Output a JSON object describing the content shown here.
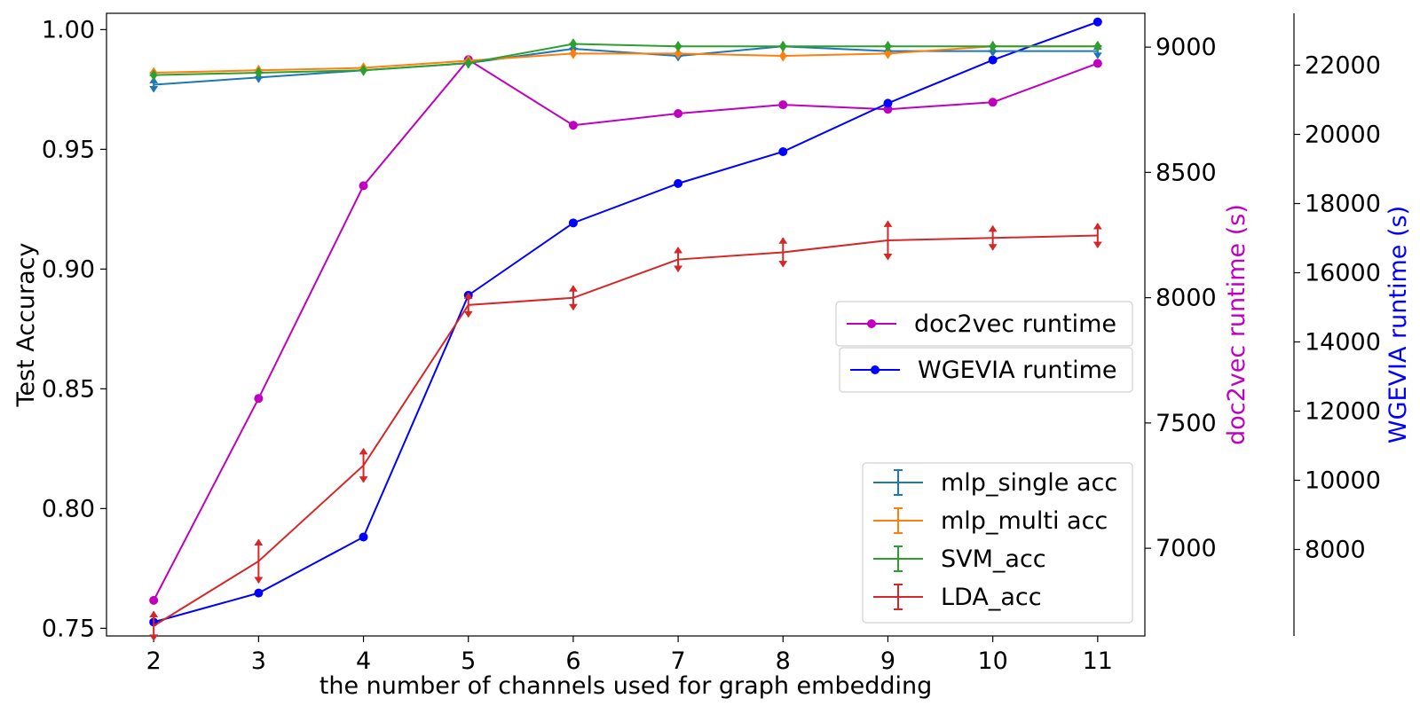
{
  "chart_data": {
    "type": "line",
    "xlabel": "the number of channels used for graph embedding",
    "ylabel": "Test Accuracy",
    "y2label": "doc2vec runtime (s)",
    "y3label": "WGEVIA runtime (s)",
    "x": [
      2,
      3,
      4,
      5,
      6,
      7,
      8,
      9,
      10,
      11
    ],
    "xticks": [
      "2",
      "3",
      "4",
      "5",
      "6",
      "7",
      "8",
      "9",
      "10",
      "11"
    ],
    "xlim": [
      1.55,
      11.45
    ],
    "ylim": [
      0.7468,
      1.0068
    ],
    "yticks": [
      "0.75",
      "0.80",
      "0.85",
      "0.90",
      "0.95",
      "1.00"
    ],
    "y2lim": [
      6650,
      9135
    ],
    "y2ticks": [
      "7000",
      "7500",
      "8000",
      "8500",
      "9000"
    ],
    "y3lim": [
      5500,
      23500
    ],
    "y3ticks": [
      "8000",
      "10000",
      "12000",
      "14000",
      "16000",
      "18000",
      "20000",
      "22000"
    ],
    "accuracy_series": [
      {
        "name": "mlp_single acc",
        "color": "#1f77b4",
        "values": [
          0.977,
          0.98,
          0.983,
          0.986,
          0.992,
          0.989,
          0.993,
          0.991,
          0.991,
          0.991
        ],
        "err": [
          0.003,
          0.002,
          0.002,
          0.002,
          0.002,
          0.002,
          0.002,
          0.002,
          0.002,
          0.003
        ]
      },
      {
        "name": "mlp_multi acc",
        "color": "#ff7f0e",
        "values": [
          0.982,
          0.983,
          0.984,
          0.987,
          0.99,
          0.99,
          0.989,
          0.99,
          0.993,
          0.993
        ],
        "err": [
          0.002,
          0.002,
          0.002,
          0.002,
          0.002,
          0.002,
          0.002,
          0.002,
          0.002,
          0.002
        ]
      },
      {
        "name": "SVM_acc",
        "color": "#2ca02c",
        "values": [
          0.981,
          0.982,
          0.983,
          0.986,
          0.994,
          0.993,
          0.993,
          0.993,
          0.993,
          0.993
        ],
        "err": [
          0.002,
          0.002,
          0.002,
          0.002,
          0.002,
          0.002,
          0.002,
          0.002,
          0.002,
          0.002
        ]
      },
      {
        "name": "LDA_acc",
        "color": "#d62728",
        "values": [
          0.751,
          0.778,
          0.818,
          0.885,
          0.888,
          0.904,
          0.907,
          0.912,
          0.913,
          0.914
        ],
        "err": [
          0.006,
          0.009,
          0.007,
          0.005,
          0.005,
          0.005,
          0.006,
          0.008,
          0.005,
          0.005
        ]
      }
    ],
    "runtime_series": [
      {
        "name": "doc2vec runtime",
        "axis": "y2",
        "color": "#bf00bf",
        "values": [
          6792,
          7598,
          8447,
          8950,
          8688,
          8735,
          8770,
          8752,
          8780,
          8935
        ]
      },
      {
        "name": "WGEVIA runtime",
        "axis": "y3",
        "color": "#0000ff",
        "values": [
          5900,
          6740,
          8360,
          15350,
          17440,
          18580,
          19500,
          20900,
          22150,
          23250
        ]
      }
    ],
    "legends": {
      "doc2vec": "doc2vec runtime",
      "wgevia": "WGEVIA runtime",
      "acc": [
        "mlp_single acc",
        "mlp_multi acc",
        "SVM_acc",
        "LDA_acc"
      ]
    },
    "grid": false
  }
}
